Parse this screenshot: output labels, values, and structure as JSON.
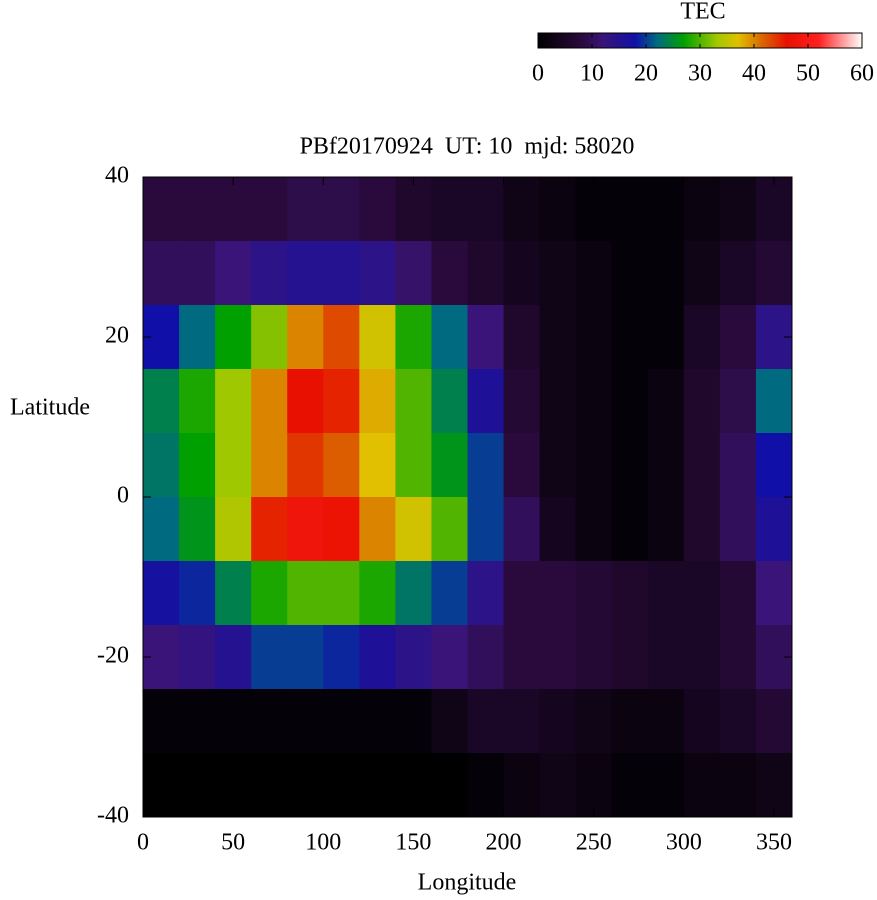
{
  "chart_data": {
    "type": "heatmap",
    "title": "PBf20170924  UT: 10  mjd: 58020",
    "x_label": "Longitude",
    "y_label": "Latitude",
    "colorbar_label": "TEC",
    "x": [
      10,
      30,
      50,
      70,
      90,
      110,
      130,
      150,
      170,
      190,
      210,
      230,
      250,
      270,
      290,
      310,
      330,
      350
    ],
    "y": [
      36,
      28,
      20,
      12,
      4,
      -4,
      -12,
      -20,
      -28,
      -36
    ],
    "z": [
      [
        8,
        8,
        8,
        8,
        9,
        9,
        8,
        6,
        5,
        5,
        3,
        2,
        1,
        1,
        1,
        2,
        3,
        5
      ],
      [
        10,
        10,
        12,
        14,
        15,
        15,
        14,
        11,
        8,
        6,
        4,
        3,
        2,
        1,
        1,
        3,
        5,
        7
      ],
      [
        18,
        22,
        27,
        32,
        40,
        43,
        36,
        28,
        22,
        12,
        6,
        3,
        2,
        1,
        1,
        5,
        8,
        14
      ],
      [
        24,
        28,
        33,
        40,
        46,
        45,
        38,
        30,
        24,
        16,
        7,
        3,
        2,
        1,
        2,
        6,
        9,
        22
      ],
      [
        23,
        27,
        33,
        40,
        44,
        42,
        37,
        30,
        26,
        20,
        8,
        3,
        2,
        1,
        2,
        6,
        10,
        18
      ],
      [
        22,
        26,
        34,
        45,
        48,
        47,
        40,
        36,
        30,
        20,
        10,
        4,
        2,
        1,
        2,
        6,
        10,
        16
      ],
      [
        17,
        19,
        24,
        28,
        30,
        30,
        28,
        23,
        20,
        14,
        8,
        8,
        7,
        6,
        5,
        5,
        7,
        12
      ],
      [
        12,
        13,
        15,
        20,
        20,
        19,
        16,
        14,
        12,
        10,
        8,
        8,
        7,
        6,
        5,
        5,
        7,
        10
      ],
      [
        1,
        1,
        1,
        1,
        1,
        1,
        1,
        1,
        3,
        5,
        5,
        4,
        3,
        2,
        2,
        4,
        5,
        7
      ],
      [
        0,
        0,
        0,
        0,
        0,
        0,
        0,
        0,
        0,
        1,
        2,
        3,
        2,
        1,
        1,
        2,
        2,
        3
      ]
    ],
    "xlim": [
      0,
      360
    ],
    "ylim": [
      -40,
      40
    ],
    "xticks": [
      0,
      50,
      100,
      150,
      200,
      250,
      300,
      350
    ],
    "yticks": [
      -40,
      -20,
      0,
      20,
      40
    ],
    "clim": [
      0,
      60
    ],
    "cticks": [
      0,
      10,
      20,
      30,
      40,
      50,
      60
    ],
    "colorscale": [
      {
        "value": 0,
        "color": "#000000"
      },
      {
        "value": 8,
        "color": "#2a0a3c"
      },
      {
        "value": 12,
        "color": "#3a1478"
      },
      {
        "value": 18,
        "color": "#1010a8"
      },
      {
        "value": 22,
        "color": "#006a80"
      },
      {
        "value": 27,
        "color": "#00a000"
      },
      {
        "value": 33,
        "color": "#a0c800"
      },
      {
        "value": 37,
        "color": "#e0c000"
      },
      {
        "value": 41,
        "color": "#d87000"
      },
      {
        "value": 46,
        "color": "#e81000"
      },
      {
        "value": 52,
        "color": "#ff2020"
      },
      {
        "value": 60,
        "color": "#ffffff"
      }
    ]
  }
}
